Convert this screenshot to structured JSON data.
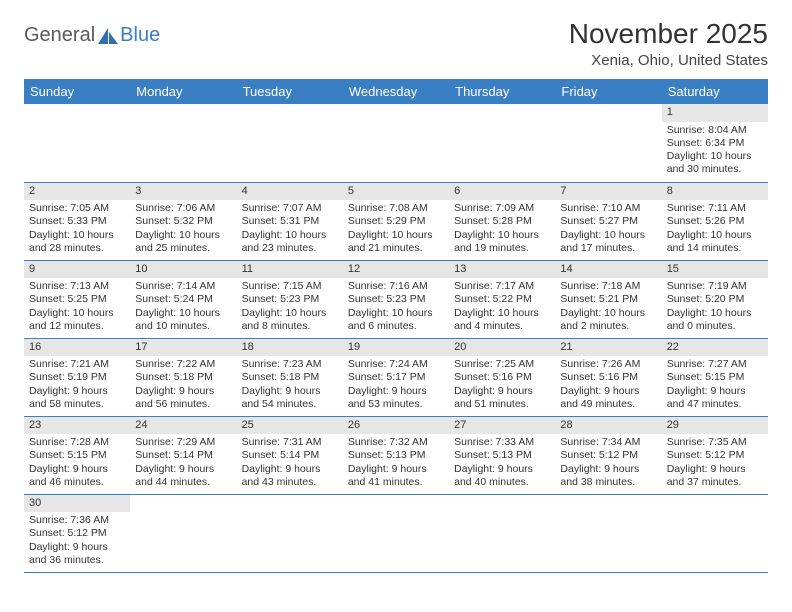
{
  "logo": {
    "part1": "General",
    "part2": "Blue"
  },
  "title": "November 2025",
  "location": "Xenia, Ohio, United States",
  "header_bg": "#3a7fc4",
  "days_of_week": [
    "Sunday",
    "Monday",
    "Tuesday",
    "Wednesday",
    "Thursday",
    "Friday",
    "Saturday"
  ],
  "first_weekday_index": 6,
  "days": [
    {
      "n": 1,
      "sunrise": "8:04 AM",
      "sunset": "6:34 PM",
      "daylight": "10 hours and 30 minutes."
    },
    {
      "n": 2,
      "sunrise": "7:05 AM",
      "sunset": "5:33 PM",
      "daylight": "10 hours and 28 minutes."
    },
    {
      "n": 3,
      "sunrise": "7:06 AM",
      "sunset": "5:32 PM",
      "daylight": "10 hours and 25 minutes."
    },
    {
      "n": 4,
      "sunrise": "7:07 AM",
      "sunset": "5:31 PM",
      "daylight": "10 hours and 23 minutes."
    },
    {
      "n": 5,
      "sunrise": "7:08 AM",
      "sunset": "5:29 PM",
      "daylight": "10 hours and 21 minutes."
    },
    {
      "n": 6,
      "sunrise": "7:09 AM",
      "sunset": "5:28 PM",
      "daylight": "10 hours and 19 minutes."
    },
    {
      "n": 7,
      "sunrise": "7:10 AM",
      "sunset": "5:27 PM",
      "daylight": "10 hours and 17 minutes."
    },
    {
      "n": 8,
      "sunrise": "7:11 AM",
      "sunset": "5:26 PM",
      "daylight": "10 hours and 14 minutes."
    },
    {
      "n": 9,
      "sunrise": "7:13 AM",
      "sunset": "5:25 PM",
      "daylight": "10 hours and 12 minutes."
    },
    {
      "n": 10,
      "sunrise": "7:14 AM",
      "sunset": "5:24 PM",
      "daylight": "10 hours and 10 minutes."
    },
    {
      "n": 11,
      "sunrise": "7:15 AM",
      "sunset": "5:23 PM",
      "daylight": "10 hours and 8 minutes."
    },
    {
      "n": 12,
      "sunrise": "7:16 AM",
      "sunset": "5:23 PM",
      "daylight": "10 hours and 6 minutes."
    },
    {
      "n": 13,
      "sunrise": "7:17 AM",
      "sunset": "5:22 PM",
      "daylight": "10 hours and 4 minutes."
    },
    {
      "n": 14,
      "sunrise": "7:18 AM",
      "sunset": "5:21 PM",
      "daylight": "10 hours and 2 minutes."
    },
    {
      "n": 15,
      "sunrise": "7:19 AM",
      "sunset": "5:20 PM",
      "daylight": "10 hours and 0 minutes."
    },
    {
      "n": 16,
      "sunrise": "7:21 AM",
      "sunset": "5:19 PM",
      "daylight": "9 hours and 58 minutes."
    },
    {
      "n": 17,
      "sunrise": "7:22 AM",
      "sunset": "5:18 PM",
      "daylight": "9 hours and 56 minutes."
    },
    {
      "n": 18,
      "sunrise": "7:23 AM",
      "sunset": "5:18 PM",
      "daylight": "9 hours and 54 minutes."
    },
    {
      "n": 19,
      "sunrise": "7:24 AM",
      "sunset": "5:17 PM",
      "daylight": "9 hours and 53 minutes."
    },
    {
      "n": 20,
      "sunrise": "7:25 AM",
      "sunset": "5:16 PM",
      "daylight": "9 hours and 51 minutes."
    },
    {
      "n": 21,
      "sunrise": "7:26 AM",
      "sunset": "5:16 PM",
      "daylight": "9 hours and 49 minutes."
    },
    {
      "n": 22,
      "sunrise": "7:27 AM",
      "sunset": "5:15 PM",
      "daylight": "9 hours and 47 minutes."
    },
    {
      "n": 23,
      "sunrise": "7:28 AM",
      "sunset": "5:15 PM",
      "daylight": "9 hours and 46 minutes."
    },
    {
      "n": 24,
      "sunrise": "7:29 AM",
      "sunset": "5:14 PM",
      "daylight": "9 hours and 44 minutes."
    },
    {
      "n": 25,
      "sunrise": "7:31 AM",
      "sunset": "5:14 PM",
      "daylight": "9 hours and 43 minutes."
    },
    {
      "n": 26,
      "sunrise": "7:32 AM",
      "sunset": "5:13 PM",
      "daylight": "9 hours and 41 minutes."
    },
    {
      "n": 27,
      "sunrise": "7:33 AM",
      "sunset": "5:13 PM",
      "daylight": "9 hours and 40 minutes."
    },
    {
      "n": 28,
      "sunrise": "7:34 AM",
      "sunset": "5:12 PM",
      "daylight": "9 hours and 38 minutes."
    },
    {
      "n": 29,
      "sunrise": "7:35 AM",
      "sunset": "5:12 PM",
      "daylight": "9 hours and 37 minutes."
    },
    {
      "n": 30,
      "sunrise": "7:36 AM",
      "sunset": "5:12 PM",
      "daylight": "9 hours and 36 minutes."
    }
  ],
  "labels": {
    "sunrise": "Sunrise:",
    "sunset": "Sunset:",
    "daylight": "Daylight:"
  }
}
